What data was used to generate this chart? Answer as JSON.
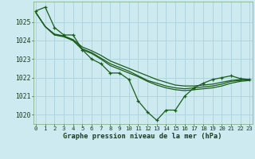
{
  "title": "Graphe pression niveau de la mer (hPa)",
  "background_color": "#cdeaf0",
  "grid_color": "#b0d5dc",
  "line_color": "#1a5c1a",
  "x_labels": [
    "0",
    "1",
    "2",
    "3",
    "4",
    "5",
    "6",
    "7",
    "8",
    "9",
    "10",
    "11",
    "12",
    "13",
    "14",
    "15",
    "16",
    "17",
    "18",
    "19",
    "20",
    "21",
    "22",
    "23"
  ],
  "ylim": [
    1019.5,
    1026.1
  ],
  "yticks": [
    1020,
    1021,
    1022,
    1023,
    1024,
    1025
  ],
  "series_smooth1": [
    1025.5,
    1024.75,
    1024.35,
    1024.25,
    1024.05,
    1023.65,
    1023.45,
    1023.2,
    1022.9,
    1022.7,
    1022.5,
    1022.3,
    1022.1,
    1021.9,
    1021.75,
    1021.6,
    1021.55,
    1021.55,
    1021.6,
    1021.65,
    1021.75,
    1021.85,
    1021.9,
    1021.9
  ],
  "series_smooth2": [
    1025.5,
    1024.75,
    1024.3,
    1024.25,
    1024.0,
    1023.55,
    1023.35,
    1023.05,
    1022.75,
    1022.55,
    1022.35,
    1022.1,
    1021.85,
    1021.7,
    1021.55,
    1021.45,
    1021.4,
    1021.45,
    1021.5,
    1021.55,
    1021.65,
    1021.8,
    1021.85,
    1021.9
  ],
  "series_smooth3": [
    1025.5,
    1024.75,
    1024.3,
    1024.2,
    1024.0,
    1023.5,
    1023.3,
    1023.0,
    1022.65,
    1022.45,
    1022.25,
    1022.05,
    1021.8,
    1021.6,
    1021.45,
    1021.35,
    1021.3,
    1021.35,
    1021.4,
    1021.45,
    1021.55,
    1021.7,
    1021.8,
    1021.85
  ],
  "series_jagged": [
    1025.6,
    1025.8,
    1024.7,
    1024.3,
    1024.3,
    1023.5,
    1023.0,
    1022.75,
    1022.25,
    1022.25,
    1021.9,
    1020.75,
    1020.15,
    1019.7,
    1020.25,
    1020.25,
    1021.0,
    1021.45,
    1021.7,
    1021.9,
    1022.0,
    1022.1,
    1021.95,
    1021.9
  ]
}
